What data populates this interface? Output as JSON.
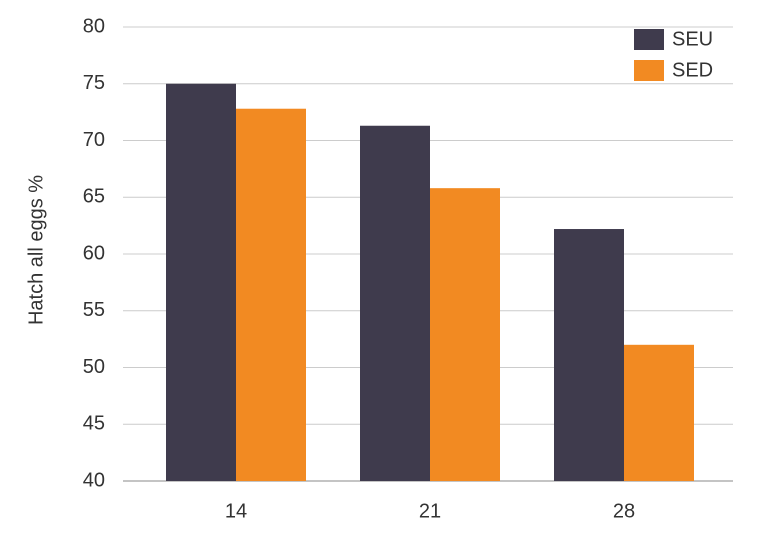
{
  "chart_data": {
    "type": "bar",
    "y_label": "Hatch all eggs %",
    "categories": [
      "14",
      "21",
      "28"
    ],
    "series": [
      {
        "name": "SEU",
        "color": "#3f3b4d",
        "values": [
          75,
          71.3,
          62.2
        ]
      },
      {
        "name": "SED",
        "color": "#f28a22",
        "values": [
          72.8,
          65.8,
          52
        ]
      }
    ],
    "ylim": [
      40,
      80
    ],
    "yticks": [
      40,
      45,
      50,
      55,
      60,
      65,
      70,
      75,
      80
    ],
    "grid": true,
    "legend": "upper right"
  }
}
